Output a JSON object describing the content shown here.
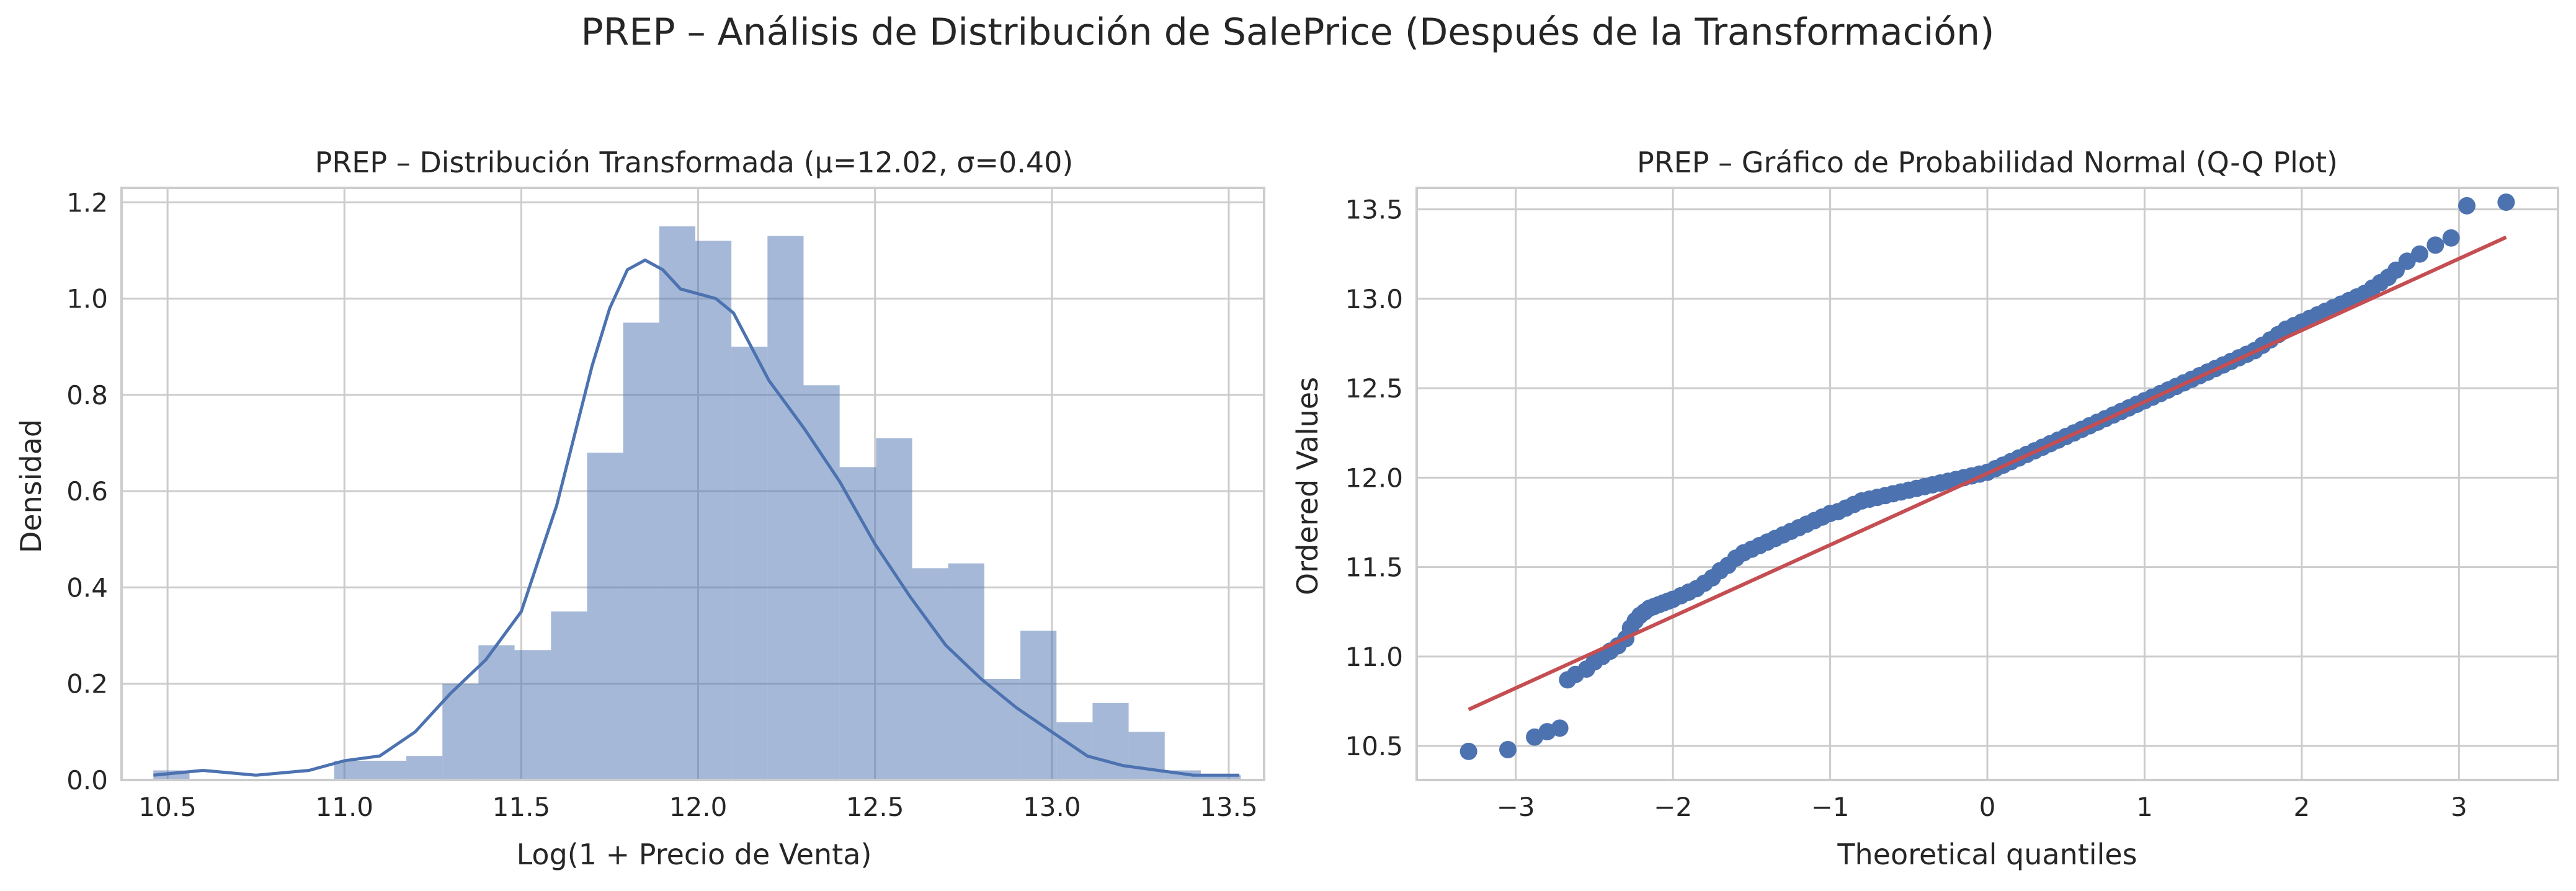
{
  "figure": {
    "suptitle": "PREP – Análisis de Distribución de SalePrice (Después de la Transformación)"
  },
  "colors": {
    "hist_fill": "#4C72B0",
    "kde_line": "#4C72B0",
    "qq_points": "#4C72B0",
    "qq_line": "#C44E52",
    "grid": "#CCCCCC",
    "text": "#262626"
  },
  "chart_data": [
    {
      "type": "bar",
      "subtype": "histogram-with-kde",
      "title": "PREP – Distribución Transformada (μ=12.02, σ=0.40)",
      "xlabel": "Log(1 + Precio de Venta)",
      "ylabel": "Densidad",
      "xlim": [
        10.37,
        13.6
      ],
      "ylim": [
        0,
        1.23
      ],
      "xticks": [
        10.5,
        11.0,
        11.5,
        12.0,
        12.5,
        13.0,
        13.5
      ],
      "xtick_labels": [
        "10.5",
        "11.0",
        "11.5",
        "12.0",
        "12.5",
        "13.0",
        "13.5"
      ],
      "yticks": [
        0,
        0.2,
        0.4,
        0.6,
        0.8,
        1.0,
        1.2
      ],
      "ytick_labels": [
        "0.0",
        "0.2",
        "0.4",
        "0.6",
        "0.8",
        "1.0",
        "1.2"
      ],
      "grid": true,
      "bin_edges": [
        10.46,
        10.562,
        10.664,
        10.767,
        10.869,
        10.971,
        11.073,
        11.175,
        11.277,
        11.379,
        11.481,
        11.584,
        11.686,
        11.788,
        11.89,
        11.992,
        12.094,
        12.196,
        12.298,
        12.4,
        12.503,
        12.605,
        12.707,
        12.809,
        12.911,
        13.013,
        13.115,
        13.217,
        13.319,
        13.421,
        13.534
      ],
      "values": [
        0.02,
        0.0,
        0.0,
        0.0,
        0.0,
        0.04,
        0.04,
        0.05,
        0.2,
        0.28,
        0.27,
        0.35,
        0.68,
        0.95,
        1.15,
        1.12,
        0.9,
        1.13,
        0.82,
        0.65,
        0.71,
        0.44,
        0.45,
        0.21,
        0.31,
        0.12,
        0.16,
        0.1,
        0.02,
        0.01
      ],
      "kde": {
        "x": [
          10.46,
          10.6,
          10.75,
          10.9,
          11.0,
          11.1,
          11.2,
          11.3,
          11.4,
          11.5,
          11.6,
          11.7,
          11.75,
          11.8,
          11.85,
          11.9,
          11.95,
          12.0,
          12.05,
          12.1,
          12.15,
          12.2,
          12.3,
          12.4,
          12.5,
          12.6,
          12.7,
          12.8,
          12.9,
          13.0,
          13.1,
          13.2,
          13.3,
          13.4,
          13.53
        ],
        "y": [
          0.01,
          0.02,
          0.01,
          0.02,
          0.04,
          0.05,
          0.1,
          0.18,
          0.25,
          0.35,
          0.57,
          0.86,
          0.98,
          1.06,
          1.08,
          1.06,
          1.02,
          1.01,
          1.0,
          0.97,
          0.9,
          0.83,
          0.73,
          0.62,
          0.49,
          0.38,
          0.28,
          0.21,
          0.15,
          0.1,
          0.05,
          0.03,
          0.02,
          0.01,
          0.01
        ]
      }
    },
    {
      "type": "scatter",
      "subtype": "qq-plot",
      "title": "PREP – Gráfico de Probabilidad Normal (Q-Q Plot)",
      "xlabel": "Theoretical quantiles",
      "ylabel": "Ordered Values",
      "xlim": [
        -3.63,
        3.63
      ],
      "ylim": [
        10.31,
        13.62
      ],
      "xticks": [
        -3,
        -2,
        -1,
        0,
        1,
        2,
        3
      ],
      "xtick_labels": [
        "−3",
        "−2",
        "−1",
        "0",
        "1",
        "2",
        "3"
      ],
      "yticks": [
        10.5,
        11.0,
        11.5,
        12.0,
        12.5,
        13.0,
        13.5
      ],
      "ytick_labels": [
        "10.5",
        "11.0",
        "11.5",
        "12.0",
        "12.5",
        "13.0",
        "13.5"
      ],
      "grid": true,
      "fit_line": {
        "slope": 0.4,
        "intercept": 12.024,
        "x_range": [
          -3.3,
          3.3
        ]
      },
      "points": {
        "x": [
          -3.3,
          -3.05,
          -2.88,
          -2.8,
          -2.72,
          -2.67,
          -2.62,
          -2.55,
          -2.5,
          -2.45,
          -2.4,
          -2.35,
          -2.3,
          -2.27,
          -2.24,
          -2.21,
          -2.18,
          -2.15,
          -2.12,
          -2.09,
          -2.06,
          -2.03,
          -2.0,
          -1.95,
          -1.9,
          -1.85,
          -1.8,
          -1.75,
          -1.7,
          -1.65,
          -1.6,
          -1.55,
          -1.5,
          -1.45,
          -1.4,
          -1.35,
          -1.3,
          -1.25,
          -1.2,
          -1.15,
          -1.1,
          -1.05,
          -1.0,
          -0.95,
          -0.9,
          -0.85,
          -0.8,
          -0.75,
          -0.7,
          -0.65,
          -0.6,
          -0.55,
          -0.5,
          -0.45,
          -0.4,
          -0.35,
          -0.3,
          -0.25,
          -0.2,
          -0.15,
          -0.1,
          -0.05,
          0.0,
          0.05,
          0.1,
          0.15,
          0.2,
          0.25,
          0.3,
          0.35,
          0.4,
          0.45,
          0.5,
          0.55,
          0.6,
          0.65,
          0.7,
          0.75,
          0.8,
          0.85,
          0.9,
          0.95,
          1.0,
          1.05,
          1.1,
          1.15,
          1.2,
          1.25,
          1.3,
          1.35,
          1.4,
          1.45,
          1.5,
          1.55,
          1.6,
          1.65,
          1.7,
          1.75,
          1.8,
          1.85,
          1.9,
          1.95,
          2.0,
          2.05,
          2.1,
          2.15,
          2.2,
          2.25,
          2.3,
          2.35,
          2.4,
          2.45,
          2.5,
          2.55,
          2.6,
          2.67,
          2.75,
          2.85,
          2.95,
          3.05,
          3.3
        ],
        "y": [
          10.47,
          10.48,
          10.55,
          10.58,
          10.6,
          10.87,
          10.9,
          10.93,
          10.97,
          11.0,
          11.03,
          11.06,
          11.1,
          11.16,
          11.2,
          11.23,
          11.25,
          11.27,
          11.28,
          11.29,
          11.3,
          11.31,
          11.32,
          11.34,
          11.36,
          11.38,
          11.41,
          11.44,
          11.48,
          11.51,
          11.55,
          11.58,
          11.6,
          11.62,
          11.64,
          11.66,
          11.68,
          11.7,
          11.72,
          11.74,
          11.76,
          11.78,
          11.8,
          11.81,
          11.83,
          11.85,
          11.87,
          11.88,
          11.89,
          11.9,
          11.91,
          11.92,
          11.93,
          11.94,
          11.95,
          11.96,
          11.97,
          11.98,
          11.99,
          12.0,
          12.01,
          12.02,
          12.03,
          12.05,
          12.07,
          12.09,
          12.11,
          12.13,
          12.15,
          12.17,
          12.19,
          12.21,
          12.23,
          12.25,
          12.27,
          12.29,
          12.31,
          12.33,
          12.35,
          12.37,
          12.39,
          12.41,
          12.43,
          12.45,
          12.47,
          12.49,
          12.51,
          12.53,
          12.55,
          12.57,
          12.59,
          12.61,
          12.63,
          12.65,
          12.67,
          12.69,
          12.71,
          12.74,
          12.77,
          12.8,
          12.83,
          12.85,
          12.87,
          12.89,
          12.91,
          12.93,
          12.95,
          12.97,
          12.99,
          13.01,
          13.03,
          13.06,
          13.09,
          13.12,
          13.16,
          13.21,
          13.25,
          13.3,
          13.34,
          13.52,
          13.54
        ]
      }
    }
  ]
}
